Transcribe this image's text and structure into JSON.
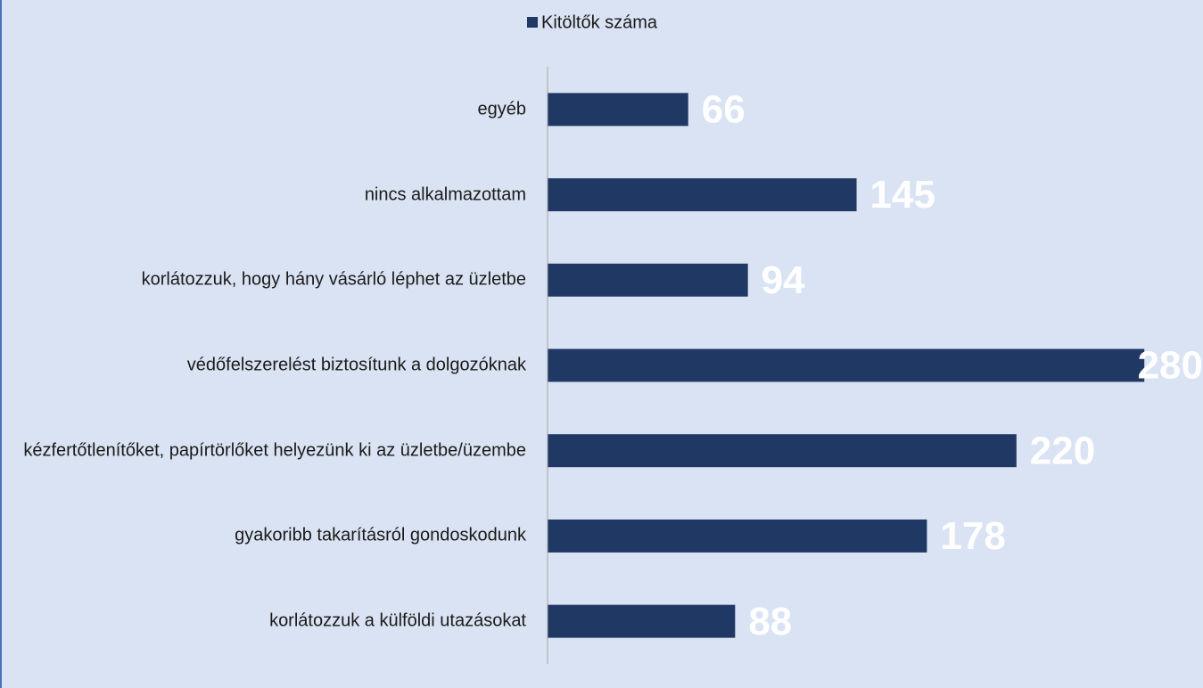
{
  "chart_data": {
    "type": "barh",
    "categories": [
      "egyéb",
      "nincs alkalmazottam",
      "korlátozzuk, hogy hány vásárló léphet az üzletbe",
      "védőfelszerelést biztosítunk a dolgozóknak",
      "kézfertőtlenítőket, papírtörlőket helyezünk ki az üzletbe/üzembe",
      "gyakoribb takarításról gondoskodunk",
      "korlátozzuk a külföldi utazásokat"
    ],
    "series": [
      {
        "name": "Kitöltők száma",
        "color": "#203864",
        "values": [
          66,
          145,
          94,
          280,
          220,
          178,
          88
        ]
      }
    ],
    "xlim": [
      0,
      300
    ],
    "legend": "top"
  }
}
